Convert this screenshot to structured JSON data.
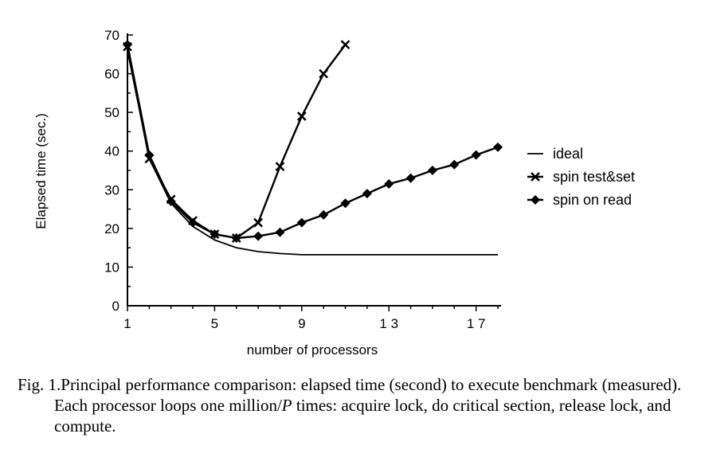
{
  "chart_data": {
    "type": "line",
    "xlabel": "number of processors",
    "ylabel": "Elapsed time (sec.)",
    "xlim": [
      1,
      18
    ],
    "ylim": [
      0,
      70
    ],
    "x_ticks": [
      1,
      5,
      9,
      13,
      17
    ],
    "x_tick_labels": [
      "1",
      "5",
      "9",
      "1 3",
      "1 7"
    ],
    "y_ticks": [
      0,
      10,
      20,
      30,
      40,
      50,
      60,
      70
    ],
    "y_tick_labels": [
      "0",
      "10",
      "20",
      "30",
      "40",
      "50",
      "60",
      "70"
    ],
    "legend_position": "right",
    "series": [
      {
        "name": "ideal",
        "marker": "none",
        "x": [
          1,
          2,
          3,
          4,
          5,
          6,
          7,
          8,
          9,
          10,
          11,
          12,
          13,
          14,
          15,
          16,
          17,
          18
        ],
        "y": [
          66,
          38,
          26.5,
          20.5,
          17,
          15,
          14,
          13.5,
          13.2,
          13.2,
          13.2,
          13.2,
          13.2,
          13.2,
          13.2,
          13.2,
          13.2,
          13.2
        ]
      },
      {
        "name": "spin test&set",
        "marker": "x",
        "x": [
          1,
          2,
          3,
          4,
          5,
          6,
          7,
          8,
          9,
          10,
          11
        ],
        "y": [
          67,
          38,
          27.5,
          22,
          18.5,
          17.5,
          21.5,
          36,
          49,
          60,
          67.5
        ]
      },
      {
        "name": "spin on read",
        "marker": "diamond",
        "x": [
          1,
          2,
          3,
          4,
          5,
          6,
          7,
          8,
          9,
          10,
          11,
          12,
          13,
          14,
          15,
          16,
          17,
          18
        ],
        "y": [
          67.5,
          39,
          27,
          21.5,
          18.5,
          17.5,
          18,
          19,
          21.5,
          23.5,
          26.5,
          29,
          31.5,
          33,
          35,
          36.5,
          39,
          41
        ]
      }
    ]
  },
  "caption": "Fig. 1.Principal performance comparison: elapsed time (second) to execute benchmark (measured). Each processor loops one million/P times: acquire lock, do critical section, release lock, and compute."
}
